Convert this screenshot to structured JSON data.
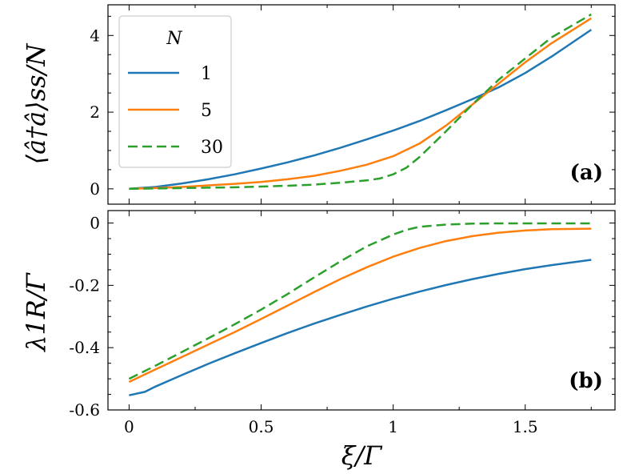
{
  "colors": {
    "series_1": "#1f77b4",
    "series_5": "#ff7f0e",
    "series_30": "#2ca02c"
  },
  "chart_data": [
    {
      "type": "line",
      "panel_label": "(a)",
      "ylabel": "⟨â†â⟩ss/N",
      "xlabel": "",
      "xlim": [
        -0.08,
        1.84
      ],
      "ylim": [
        -0.4,
        4.8
      ],
      "xticks": [
        "0",
        "0.5",
        "1",
        "1.5"
      ],
      "yticks": [
        {
          "v": 0,
          "label": "0"
        },
        {
          "v": 2,
          "label": "2"
        },
        {
          "v": 4,
          "label": "4"
        }
      ],
      "legend": {
        "title": "N",
        "placement": "top-left"
      },
      "series": [
        {
          "name": "1",
          "style": "solid",
          "color": "#1f77b4",
          "x": [
            0,
            0.1,
            0.2,
            0.3,
            0.4,
            0.5,
            0.6,
            0.7,
            0.8,
            0.9,
            1.0,
            1.1,
            1.2,
            1.3,
            1.4,
            1.5,
            1.6,
            1.75
          ],
          "y": [
            0,
            0.05,
            0.14,
            0.25,
            0.38,
            0.53,
            0.69,
            0.87,
            1.07,
            1.29,
            1.52,
            1.77,
            2.05,
            2.34,
            2.65,
            3.02,
            3.45,
            4.15
          ]
        },
        {
          "name": "5",
          "style": "solid",
          "color": "#ff7f0e",
          "x": [
            0,
            0.1,
            0.2,
            0.3,
            0.4,
            0.5,
            0.6,
            0.7,
            0.8,
            0.9,
            1.0,
            1.1,
            1.2,
            1.3,
            1.4,
            1.5,
            1.6,
            1.75
          ],
          "y": [
            0,
            0.02,
            0.05,
            0.09,
            0.13,
            0.18,
            0.25,
            0.34,
            0.47,
            0.63,
            0.85,
            1.18,
            1.65,
            2.2,
            2.75,
            3.3,
            3.8,
            4.45
          ]
        },
        {
          "name": "30",
          "style": "dashed",
          "color": "#2ca02c",
          "x": [
            0,
            0.1,
            0.2,
            0.3,
            0.4,
            0.5,
            0.6,
            0.7,
            0.8,
            0.9,
            0.95,
            1.0,
            1.05,
            1.1,
            1.2,
            1.3,
            1.4,
            1.5,
            1.6,
            1.75
          ],
          "y": [
            0,
            0.01,
            0.02,
            0.03,
            0.04,
            0.06,
            0.08,
            0.11,
            0.16,
            0.22,
            0.27,
            0.38,
            0.55,
            0.83,
            1.5,
            2.2,
            2.85,
            3.4,
            3.95,
            4.55
          ]
        }
      ]
    },
    {
      "type": "line",
      "panel_label": "(b)",
      "ylabel": "λ1R/Γ",
      "xlabel": "ξ/Γ",
      "xlim": [
        -0.08,
        1.84
      ],
      "ylim": [
        -0.6,
        0.04
      ],
      "xticks": [
        "0",
        "0.5",
        "1",
        "1.5"
      ],
      "yticks": [
        {
          "v": 0,
          "label": "0"
        },
        {
          "v": -0.2,
          "label": "-0.2"
        },
        {
          "v": -0.4,
          "label": "-0.4"
        },
        {
          "v": -0.6,
          "label": "-0.6"
        }
      ],
      "series": [
        {
          "name": "1",
          "style": "solid",
          "color": "#1f77b4",
          "x": [
            0,
            0.06,
            0.1,
            0.2,
            0.3,
            0.4,
            0.5,
            0.6,
            0.7,
            0.8,
            0.9,
            1.0,
            1.1,
            1.2,
            1.3,
            1.4,
            1.5,
            1.6,
            1.75
          ],
          "y": [
            -0.553,
            -0.542,
            -0.525,
            -0.488,
            -0.452,
            -0.418,
            -0.385,
            -0.353,
            -0.323,
            -0.295,
            -0.268,
            -0.243,
            -0.22,
            -0.199,
            -0.18,
            -0.163,
            -0.148,
            -0.135,
            -0.118
          ]
        },
        {
          "name": "5",
          "style": "solid",
          "color": "#ff7f0e",
          "x": [
            0,
            0.1,
            0.2,
            0.3,
            0.4,
            0.5,
            0.6,
            0.7,
            0.8,
            0.9,
            1.0,
            1.1,
            1.2,
            1.3,
            1.4,
            1.5,
            1.6,
            1.75
          ],
          "y": [
            -0.51,
            -0.47,
            -0.43,
            -0.39,
            -0.35,
            -0.308,
            -0.265,
            -0.222,
            -0.18,
            -0.142,
            -0.108,
            -0.08,
            -0.058,
            -0.042,
            -0.031,
            -0.024,
            -0.02,
            -0.018
          ]
        },
        {
          "name": "30",
          "style": "dashed",
          "color": "#2ca02c",
          "x": [
            0,
            0.1,
            0.2,
            0.3,
            0.4,
            0.5,
            0.6,
            0.7,
            0.8,
            0.9,
            1.0,
            1.05,
            1.1,
            1.2,
            1.3,
            1.4,
            1.5,
            1.6,
            1.75
          ],
          "y": [
            -0.5,
            -0.458,
            -0.414,
            -0.37,
            -0.325,
            -0.278,
            -0.228,
            -0.175,
            -0.123,
            -0.075,
            -0.037,
            -0.022,
            -0.012,
            -0.005,
            -0.002,
            -0.001,
            -0.001,
            -0.001,
            -0.001
          ]
        }
      ]
    }
  ]
}
